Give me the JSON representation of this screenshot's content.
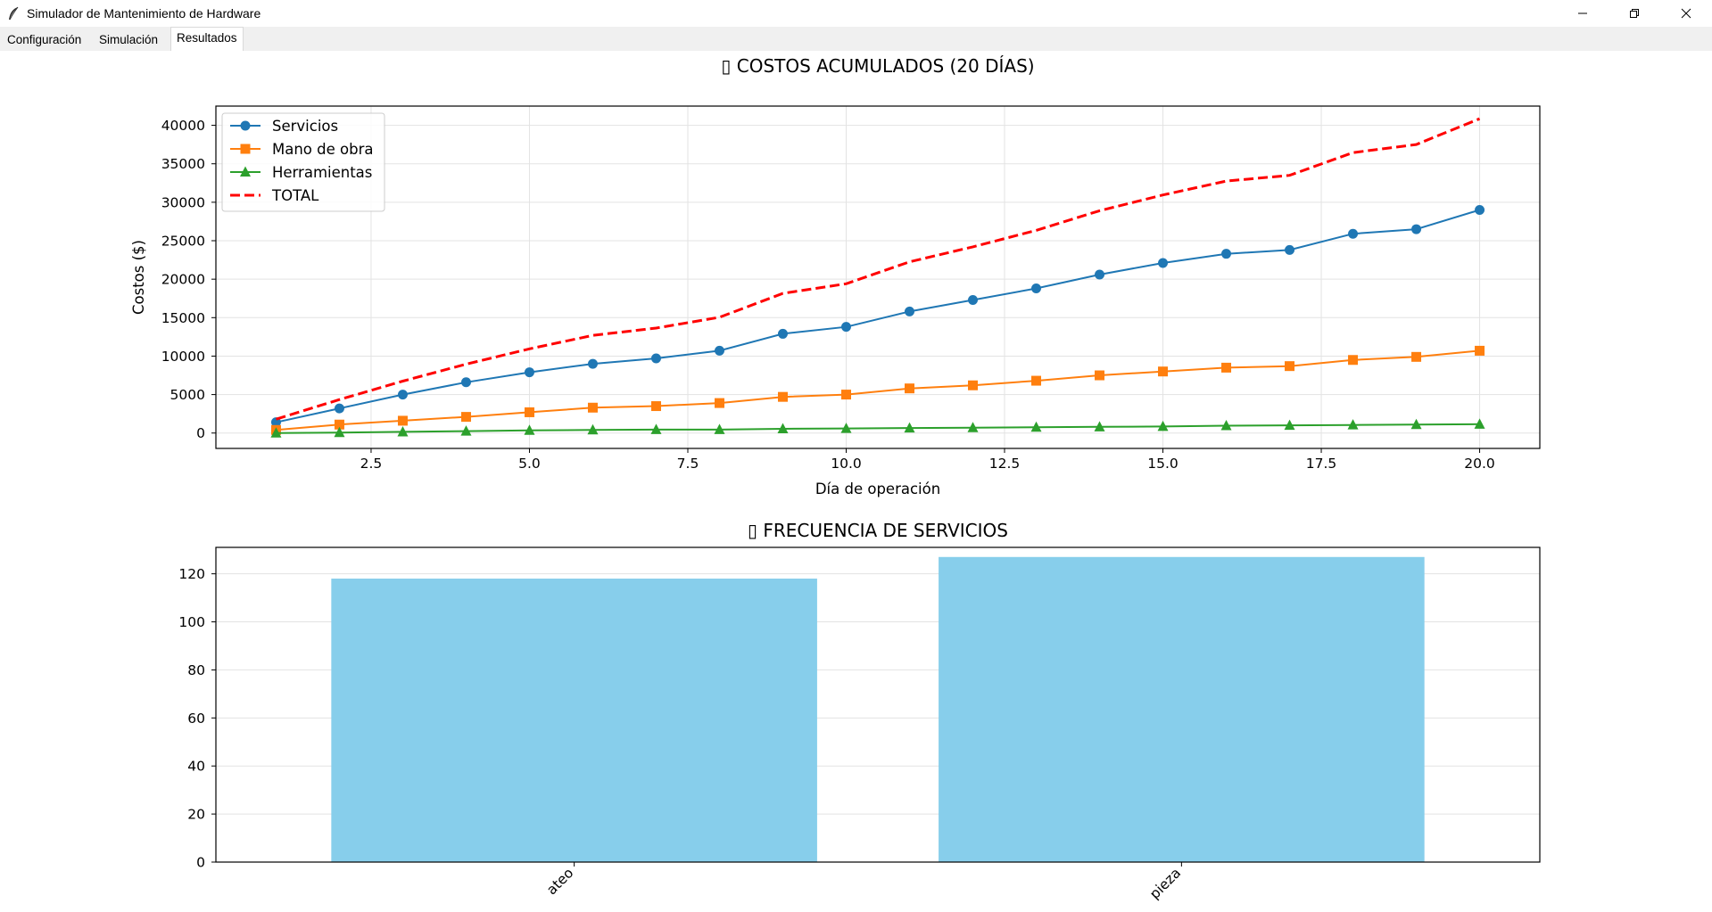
{
  "window": {
    "title": "Simulador de Mantenimiento de Hardware",
    "icon": "feather-icon"
  },
  "tabs": [
    {
      "label": "Configuración",
      "active": false
    },
    {
      "label": "Simulación",
      "active": false
    },
    {
      "label": "Resultados",
      "active": true
    }
  ],
  "chart_data": [
    {
      "type": "line",
      "title": "▯ COSTOS ACUMULADOS (20 DÍAS)",
      "xlabel": "Día de operación",
      "ylabel": "Costos ($)",
      "xlim": [
        0.05,
        20.95
      ],
      "ylim": [
        -2000,
        42500
      ],
      "xticks": [
        2.5,
        5.0,
        7.5,
        10.0,
        12.5,
        15.0,
        17.5,
        20.0
      ],
      "xtick_labels": [
        "2.5",
        "5.0",
        "7.5",
        "10.0",
        "12.5",
        "15.0",
        "17.5",
        "20.0"
      ],
      "yticks": [
        0,
        5000,
        10000,
        15000,
        20000,
        25000,
        30000,
        35000,
        40000
      ],
      "ytick_labels": [
        "0",
        "5000",
        "10000",
        "15000",
        "20000",
        "25000",
        "30000",
        "35000",
        "40000"
      ],
      "grid": true,
      "legend": "top-left",
      "x": [
        1,
        2,
        3,
        4,
        5,
        6,
        7,
        8,
        9,
        10,
        11,
        12,
        13,
        14,
        15,
        16,
        17,
        18,
        19,
        20
      ],
      "series": [
        {
          "name": "Servicios",
          "color": "#1f77b4",
          "marker": "circle",
          "style": "solid",
          "values": [
            1400,
            3200,
            5000,
            6600,
            7900,
            9000,
            9700,
            10700,
            12900,
            13800,
            15800,
            17300,
            18800,
            20600,
            22100,
            23300,
            23800,
            25900,
            26500,
            29000
          ]
        },
        {
          "name": "Mano de obra",
          "color": "#ff7f0e",
          "marker": "square",
          "style": "solid",
          "values": [
            400,
            1100,
            1600,
            2100,
            2700,
            3300,
            3500,
            3900,
            4700,
            5000,
            5800,
            6200,
            6800,
            7500,
            8000,
            8500,
            8700,
            9500,
            9900,
            10700
          ]
        },
        {
          "name": "Herramientas",
          "color": "#2ca02c",
          "marker": "triangle",
          "style": "solid",
          "values": [
            0,
            50,
            150,
            250,
            350,
            400,
            450,
            450,
            550,
            600,
            650,
            700,
            750,
            800,
            850,
            950,
            1000,
            1050,
            1100,
            1150
          ]
        },
        {
          "name": "TOTAL",
          "color": "#ff0000",
          "marker": "none",
          "style": "dashed",
          "values": [
            1800,
            4350,
            6750,
            8950,
            10950,
            12700,
            13650,
            15050,
            18150,
            19400,
            22250,
            24200,
            26350,
            28900,
            30950,
            32750,
            33500,
            36450,
            37500,
            40850
          ]
        }
      ]
    },
    {
      "type": "bar",
      "title": "▯ FRECUENCIA DE SERVICIOS",
      "xlabel": "",
      "ylabel": "",
      "ylim": [
        0,
        131
      ],
      "yticks": [
        0,
        20,
        40,
        60,
        80,
        100,
        120
      ],
      "ytick_labels": [
        "0",
        "20",
        "40",
        "60",
        "80",
        "100",
        "120"
      ],
      "grid": true,
      "bar_color": "#87ceeb",
      "categories": [
        "ateo",
        "pieza"
      ],
      "values": [
        118,
        127
      ]
    }
  ]
}
